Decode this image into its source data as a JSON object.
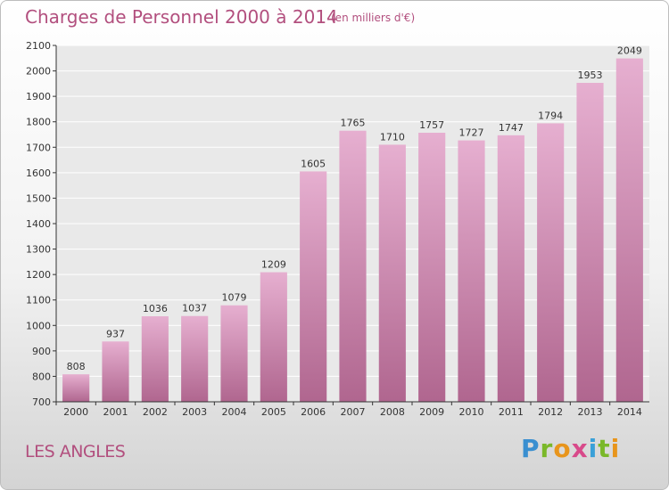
{
  "chart_data": {
    "type": "bar",
    "title": "Charges de Personnel 2000 à 2014",
    "unit_note": "(en milliers d'€)",
    "categories": [
      "2000",
      "2001",
      "2002",
      "2003",
      "2004",
      "2005",
      "2006",
      "2007",
      "2008",
      "2009",
      "2010",
      "2011",
      "2012",
      "2013",
      "2014"
    ],
    "values": [
      808,
      937,
      1036,
      1037,
      1079,
      1209,
      1605,
      1765,
      1710,
      1757,
      1727,
      1747,
      1794,
      1953,
      2049
    ],
    "ylim": [
      700,
      2100
    ],
    "yticks": [
      700,
      800,
      900,
      1000,
      1100,
      1200,
      1300,
      1400,
      1500,
      1600,
      1700,
      1800,
      1900,
      2000,
      2100
    ],
    "grid": true,
    "xlabel": "",
    "ylabel": ""
  },
  "commune": "LES ANGLES",
  "brand": {
    "letters": [
      "P",
      "r",
      "o",
      "x",
      "i",
      "t",
      "i"
    ]
  },
  "colors": {
    "bar_top": "#e6afd0",
    "bar_bottom": "#b0668f",
    "accent": "#b24f7e"
  }
}
